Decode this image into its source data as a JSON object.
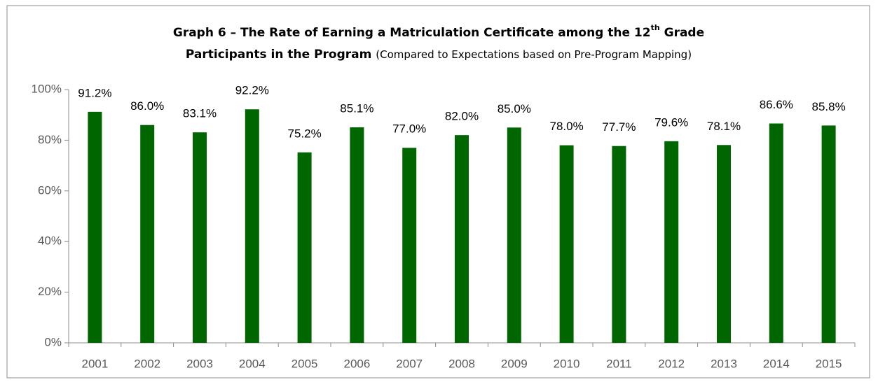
{
  "chart_data": {
    "type": "bar",
    "title": [
      "Graph 6 – The Rate of Earning a Matriculation Certificate among the 12",
      "th",
      " Grade",
      "Participants in the Program"
    ],
    "subtitle": "(Compared to Expectations based on Pre-Program Mapping)",
    "categories": [
      "2001",
      "2002",
      "2003",
      "2004",
      "2005",
      "2006",
      "2007",
      "2008",
      "2009",
      "2010",
      "2011",
      "2012",
      "2013",
      "2014",
      "2015"
    ],
    "values": [
      91.2,
      86.0,
      83.1,
      92.2,
      75.2,
      85.1,
      77.0,
      82.0,
      85.0,
      78.0,
      77.7,
      79.6,
      78.1,
      86.6,
      85.8
    ],
    "value_labels": [
      "91.2%",
      "86.0%",
      "83.1%",
      "92.2%",
      "75.2%",
      "85.1%",
      "77.0%",
      "82.0%",
      "85.0%",
      "78.0%",
      "77.7%",
      "79.6%",
      "78.1%",
      "86.6%",
      "85.8%"
    ],
    "color": "#006600",
    "ylim": [
      0,
      100
    ],
    "yticks": [
      {
        "value": 0,
        "label": "0%"
      },
      {
        "value": 20,
        "label": "20%"
      },
      {
        "value": 40,
        "label": "40%"
      },
      {
        "value": 60,
        "label": "60%"
      },
      {
        "value": 80,
        "label": "80%"
      },
      {
        "value": 100,
        "label": "100%"
      }
    ],
    "grid": false
  }
}
